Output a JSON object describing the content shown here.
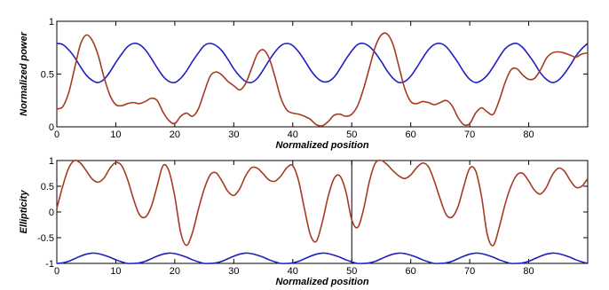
{
  "chart_data": [
    {
      "type": "line",
      "xlabel": "Normalized position",
      "ylabel": "Normalized power",
      "xlim": [
        0,
        90
      ],
      "ylim": [
        0,
        1
      ],
      "xticks": [
        0,
        10,
        20,
        30,
        40,
        50,
        60,
        70,
        80
      ],
      "yticks": [
        0,
        0.5,
        1
      ],
      "ytick_labels": [
        "0",
        "0.5",
        "1"
      ],
      "grid": false,
      "colors": {
        "blue": "#1f1fbf",
        "red": "#a63a22"
      },
      "series": [
        {
          "color": "#1f1fbf",
          "x": [
            0,
            1,
            2,
            3,
            4,
            5,
            6,
            7,
            8,
            9,
            10,
            11,
            12,
            13,
            14,
            15,
            16,
            17,
            18,
            19,
            20,
            21,
            22,
            23,
            24,
            25,
            26,
            27,
            28,
            29,
            30,
            31,
            32,
            33,
            34,
            35,
            36,
            37,
            38,
            39,
            40,
            41,
            42,
            43,
            44,
            45,
            46,
            47,
            48,
            49,
            50,
            51,
            52,
            53,
            54,
            55,
            56,
            57,
            58,
            59,
            60,
            61,
            62,
            63,
            64,
            65,
            66,
            67,
            68,
            69,
            70,
            71,
            72,
            73,
            74,
            75,
            76,
            77,
            78,
            79,
            80,
            81,
            82,
            83,
            84,
            85,
            86,
            87,
            88,
            89,
            90
          ],
          "y": [
            0.79,
            0.78,
            0.73,
            0.66,
            0.57,
            0.49,
            0.44,
            0.42,
            0.45,
            0.52,
            0.61,
            0.69,
            0.76,
            0.79,
            0.78,
            0.73,
            0.65,
            0.56,
            0.48,
            0.43,
            0.42,
            0.46,
            0.53,
            0.62,
            0.7,
            0.77,
            0.79,
            0.77,
            0.72,
            0.64,
            0.55,
            0.48,
            0.43,
            0.42,
            0.46,
            0.54,
            0.63,
            0.71,
            0.77,
            0.79,
            0.77,
            0.71,
            0.63,
            0.54,
            0.47,
            0.43,
            0.43,
            0.47,
            0.55,
            0.64,
            0.72,
            0.78,
            0.79,
            0.76,
            0.7,
            0.62,
            0.53,
            0.46,
            0.42,
            0.43,
            0.48,
            0.56,
            0.65,
            0.73,
            0.78,
            0.79,
            0.76,
            0.69,
            0.61,
            0.52,
            0.45,
            0.42,
            0.44,
            0.49,
            0.57,
            0.66,
            0.74,
            0.78,
            0.79,
            0.75,
            0.68,
            0.6,
            0.51,
            0.45,
            0.42,
            0.44,
            0.5,
            0.58,
            0.67,
            0.74,
            0.79
          ]
        },
        {
          "color": "#a63a22",
          "x": [
            0,
            1,
            2,
            3,
            4,
            5,
            6,
            7,
            8,
            9,
            10,
            11,
            12,
            13,
            14,
            15,
            16,
            17,
            18,
            19,
            20,
            21,
            22,
            23,
            24,
            25,
            26,
            27,
            28,
            29,
            30,
            31,
            32,
            33,
            34,
            35,
            36,
            37,
            38,
            39,
            40,
            41,
            42,
            43,
            44,
            45,
            46,
            47,
            48,
            49,
            50,
            51,
            52,
            53,
            54,
            55,
            56,
            57,
            58,
            59,
            60,
            61,
            62,
            63,
            64,
            65,
            66,
            67,
            68,
            69,
            70,
            71,
            72,
            73,
            74,
            75,
            76,
            77,
            78,
            79,
            80,
            81,
            82,
            83,
            84,
            85,
            86,
            87,
            88,
            89,
            90
          ],
          "y": [
            0.17,
            0.19,
            0.32,
            0.55,
            0.78,
            0.87,
            0.82,
            0.68,
            0.47,
            0.3,
            0.21,
            0.2,
            0.22,
            0.23,
            0.22,
            0.24,
            0.27,
            0.25,
            0.14,
            0.06,
            0.03,
            0.1,
            0.13,
            0.1,
            0.17,
            0.33,
            0.48,
            0.52,
            0.49,
            0.43,
            0.39,
            0.35,
            0.41,
            0.55,
            0.69,
            0.73,
            0.65,
            0.47,
            0.27,
            0.16,
            0.13,
            0.12,
            0.1,
            0.07,
            0.02,
            0.01,
            0.05,
            0.11,
            0.12,
            0.1,
            0.12,
            0.2,
            0.36,
            0.56,
            0.76,
            0.87,
            0.88,
            0.78,
            0.57,
            0.36,
            0.24,
            0.22,
            0.24,
            0.23,
            0.21,
            0.23,
            0.25,
            0.2,
            0.09,
            0.02,
            0.03,
            0.13,
            0.18,
            0.14,
            0.12,
            0.25,
            0.42,
            0.54,
            0.55,
            0.49,
            0.45,
            0.46,
            0.54,
            0.65,
            0.7,
            0.71,
            0.7,
            0.68,
            0.66,
            0.69,
            0.7
          ]
        }
      ]
    },
    {
      "type": "line",
      "xlabel": "Normalized position",
      "ylabel": "Ellipticity",
      "xlim": [
        0,
        90
      ],
      "ylim": [
        -1,
        1
      ],
      "xticks": [
        0,
        10,
        20,
        30,
        40,
        50,
        60,
        70,
        80
      ],
      "yticks": [
        -1,
        -0.5,
        0,
        0.5,
        1
      ],
      "ytick_labels": [
        "-1",
        "-0.5",
        "0",
        "0.5",
        "1"
      ],
      "vline_x": 50,
      "grid": false,
      "colors": {
        "blue": "#1f1fbf",
        "red": "#a63a22"
      },
      "series": [
        {
          "color": "#1f1fbf",
          "x": [
            0,
            1,
            2,
            3,
            4,
            5,
            6,
            7,
            8,
            9,
            10,
            11,
            12,
            13,
            14,
            15,
            16,
            17,
            18,
            19,
            20,
            21,
            22,
            23,
            24,
            25,
            26,
            27,
            28,
            29,
            30,
            31,
            32,
            33,
            34,
            35,
            36,
            37,
            38,
            39,
            40,
            41,
            42,
            43,
            44,
            45,
            46,
            47,
            48,
            49,
            50,
            51,
            52,
            53,
            54,
            55,
            56,
            57,
            58,
            59,
            60,
            61,
            62,
            63,
            64,
            65,
            66,
            67,
            68,
            69,
            70,
            71,
            72,
            73,
            74,
            75,
            76,
            77,
            78,
            79,
            80,
            81,
            82,
            83,
            84,
            85,
            86,
            87,
            88,
            89,
            90
          ],
          "y": [
            -1.0,
            -0.99,
            -0.96,
            -0.91,
            -0.86,
            -0.82,
            -0.8,
            -0.81,
            -0.84,
            -0.88,
            -0.93,
            -0.97,
            -1.0,
            -1.0,
            -0.99,
            -0.96,
            -0.91,
            -0.86,
            -0.82,
            -0.8,
            -0.81,
            -0.84,
            -0.88,
            -0.93,
            -0.97,
            -1.0,
            -1.0,
            -0.99,
            -0.96,
            -0.91,
            -0.86,
            -0.82,
            -0.8,
            -0.81,
            -0.84,
            -0.88,
            -0.93,
            -0.97,
            -1.0,
            -1.0,
            -0.99,
            -0.96,
            -0.91,
            -0.86,
            -0.82,
            -0.8,
            -0.81,
            -0.84,
            -0.88,
            -0.93,
            -0.97,
            -1.0,
            -1.0,
            -0.99,
            -0.96,
            -0.91,
            -0.86,
            -0.82,
            -0.8,
            -0.81,
            -0.84,
            -0.88,
            -0.93,
            -0.97,
            -1.0,
            -1.0,
            -0.99,
            -0.96,
            -0.91,
            -0.86,
            -0.82,
            -0.8,
            -0.81,
            -0.84,
            -0.88,
            -0.93,
            -0.97,
            -1.0,
            -1.0,
            -0.99,
            -0.96,
            -0.91,
            -0.86,
            -0.82,
            -0.8,
            -0.81,
            -0.84,
            -0.88,
            -0.93,
            -0.97,
            -1.0
          ]
        },
        {
          "color": "#a63a22",
          "x": [
            0,
            1,
            2,
            3,
            4,
            5,
            6,
            7,
            8,
            9,
            10,
            11,
            12,
            13,
            14,
            15,
            16,
            17,
            18,
            19,
            20,
            21,
            22,
            23,
            24,
            25,
            26,
            27,
            28,
            29,
            30,
            31,
            32,
            33,
            34,
            35,
            36,
            37,
            38,
            39,
            40,
            41,
            42,
            43,
            44,
            45,
            46,
            47,
            48,
            49,
            50,
            51,
            52,
            53,
            54,
            55,
            56,
            57,
            58,
            59,
            60,
            61,
            62,
            63,
            64,
            65,
            66,
            67,
            68,
            69,
            70,
            71,
            72,
            73,
            74,
            75,
            76,
            77,
            78,
            79,
            80,
            81,
            82,
            83,
            84,
            85,
            86,
            87,
            88,
            89,
            90
          ],
          "y": [
            0.07,
            0.5,
            0.85,
            1.0,
            0.95,
            0.8,
            0.64,
            0.58,
            0.66,
            0.85,
            0.96,
            0.9,
            0.63,
            0.25,
            -0.05,
            -0.1,
            0.1,
            0.5,
            0.9,
            0.8,
            0.3,
            -0.4,
            -0.65,
            -0.4,
            0.05,
            0.45,
            0.72,
            0.76,
            0.6,
            0.4,
            0.32,
            0.45,
            0.7,
            0.86,
            0.85,
            0.74,
            0.62,
            0.6,
            0.7,
            0.86,
            0.9,
            0.6,
            0.05,
            -0.45,
            -0.57,
            -0.2,
            0.3,
            0.65,
            0.7,
            0.4,
            -0.15,
            -0.3,
            0.05,
            0.6,
            0.95,
            1.0,
            0.92,
            0.8,
            0.7,
            0.65,
            0.72,
            0.86,
            0.95,
            0.88,
            0.6,
            0.25,
            -0.05,
            -0.1,
            0.1,
            0.5,
            0.85,
            0.8,
            0.3,
            -0.45,
            -0.65,
            -0.3,
            0.15,
            0.5,
            0.72,
            0.75,
            0.6,
            0.42,
            0.35,
            0.48,
            0.72,
            0.85,
            0.8,
            0.62,
            0.48,
            0.5,
            0.65
          ]
        }
      ]
    }
  ]
}
